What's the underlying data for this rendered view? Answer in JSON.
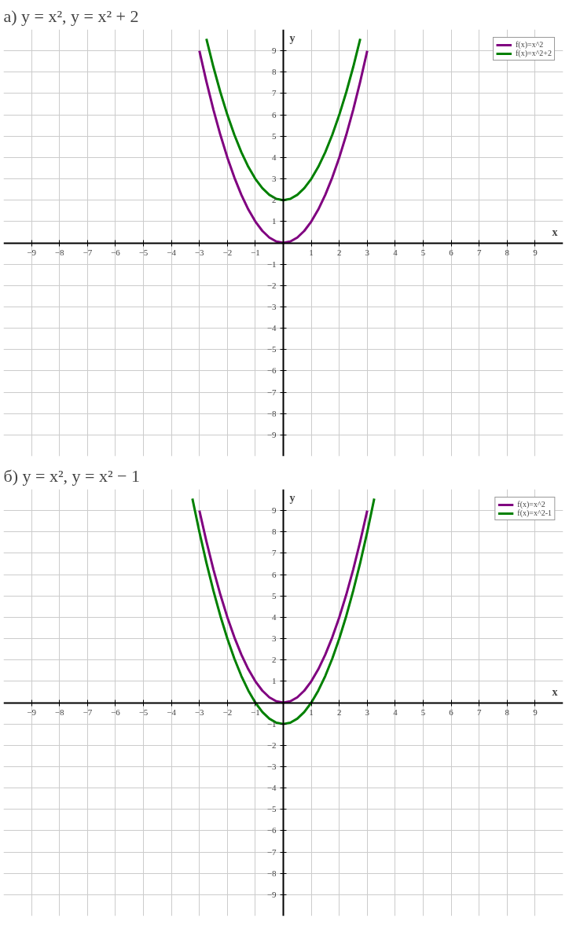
{
  "chart_data": [
    {
      "type": "line",
      "title": "а) y = x², y = x² + 2",
      "xlabel": "x",
      "ylabel": "y",
      "xlim": [
        -10,
        10
      ],
      "ylim": [
        -10,
        10
      ],
      "xticks": [
        -9,
        -8,
        -7,
        -6,
        -5,
        -4,
        -3,
        -2,
        -1,
        1,
        2,
        3,
        4,
        5,
        6,
        7,
        8,
        9
      ],
      "yticks": [
        -9,
        -8,
        -7,
        -6,
        -5,
        -4,
        -3,
        -2,
        -1,
        1,
        2,
        3,
        4,
        5,
        6,
        7,
        8,
        9
      ],
      "grid": true,
      "legend": "top right",
      "marker": "none",
      "line_style": "solid",
      "series": [
        {
          "name": "f(x)=x^2",
          "color": "#800080",
          "x": [
            -3,
            -2.75,
            -2.5,
            -2.25,
            -2,
            -1.75,
            -1.5,
            -1.25,
            -1,
            -0.75,
            -0.5,
            -0.25,
            0,
            0.25,
            0.5,
            0.75,
            1,
            1.25,
            1.5,
            1.75,
            2,
            2.25,
            2.5,
            2.75,
            3
          ],
          "values": [
            9,
            7.5625,
            6.25,
            5.0625,
            4,
            3.0625,
            2.25,
            1.5625,
            1,
            0.5625,
            0.25,
            0.0625,
            0,
            0.0625,
            0.25,
            0.5625,
            1,
            1.5625,
            2.25,
            3.0625,
            4,
            5.0625,
            6.25,
            7.5625,
            9
          ]
        },
        {
          "name": "f(x)=x^2+2",
          "color": "#008000",
          "x": [
            -2.75,
            -2.5,
            -2.25,
            -2,
            -1.75,
            -1.5,
            -1.25,
            -1,
            -0.75,
            -0.5,
            -0.25,
            0,
            0.25,
            0.5,
            0.75,
            1,
            1.25,
            1.5,
            1.75,
            2,
            2.25,
            2.5,
            2.75
          ],
          "values": [
            9.5625,
            8.25,
            7.0625,
            6,
            5.0625,
            4.25,
            3.5625,
            3,
            2.5625,
            2.25,
            2.0625,
            2,
            2.0625,
            2.25,
            2.5625,
            3,
            3.5625,
            4.25,
            5.0625,
            6,
            7.0625,
            8.25,
            9.5625
          ]
        }
      ]
    },
    {
      "type": "line",
      "title": "б) y = x², y = x² − 1",
      "xlabel": "x",
      "ylabel": "y",
      "xlim": [
        -10,
        10
      ],
      "ylim": [
        -10,
        10
      ],
      "xticks": [
        -9,
        -8,
        -7,
        -6,
        -5,
        -4,
        -3,
        -2,
        -1,
        1,
        2,
        3,
        4,
        5,
        6,
        7,
        8,
        9
      ],
      "yticks": [
        -9,
        -8,
        -7,
        -6,
        -5,
        -4,
        -3,
        -2,
        -1,
        1,
        2,
        3,
        4,
        5,
        6,
        7,
        8,
        9
      ],
      "grid": true,
      "legend": "top right",
      "marker": "none",
      "line_style": "solid",
      "series": [
        {
          "name": "f(x)=x^2",
          "color": "#800080",
          "x": [
            -3,
            -2.75,
            -2.5,
            -2.25,
            -2,
            -1.75,
            -1.5,
            -1.25,
            -1,
            -0.75,
            -0.5,
            -0.25,
            0,
            0.25,
            0.5,
            0.75,
            1,
            1.25,
            1.5,
            1.75,
            2,
            2.25,
            2.5,
            2.75,
            3
          ],
          "values": [
            9,
            7.5625,
            6.25,
            5.0625,
            4,
            3.0625,
            2.25,
            1.5625,
            1,
            0.5625,
            0.25,
            0.0625,
            0,
            0.0625,
            0.25,
            0.5625,
            1,
            1.5625,
            2.25,
            3.0625,
            4,
            5.0625,
            6.25,
            7.5625,
            9
          ]
        },
        {
          "name": "f(x)=x^2-1",
          "color": "#008000",
          "x": [
            -3.25,
            -3,
            -2.75,
            -2.5,
            -2.25,
            -2,
            -1.75,
            -1.5,
            -1.25,
            -1,
            -0.75,
            -0.5,
            -0.25,
            0,
            0.25,
            0.5,
            0.75,
            1,
            1.25,
            1.5,
            1.75,
            2,
            2.25,
            2.5,
            2.75,
            3,
            3.25
          ],
          "values": [
            9.5625,
            8,
            6.5625,
            5.25,
            4.0625,
            3,
            2.0625,
            1.25,
            0.5625,
            0,
            -0.4375,
            -0.75,
            -0.9375,
            -1,
            -0.9375,
            -0.75,
            -0.4375,
            0,
            0.5625,
            1.25,
            2.0625,
            3,
            4.0625,
            5.25,
            6.5625,
            8,
            9.5625
          ]
        }
      ]
    }
  ]
}
